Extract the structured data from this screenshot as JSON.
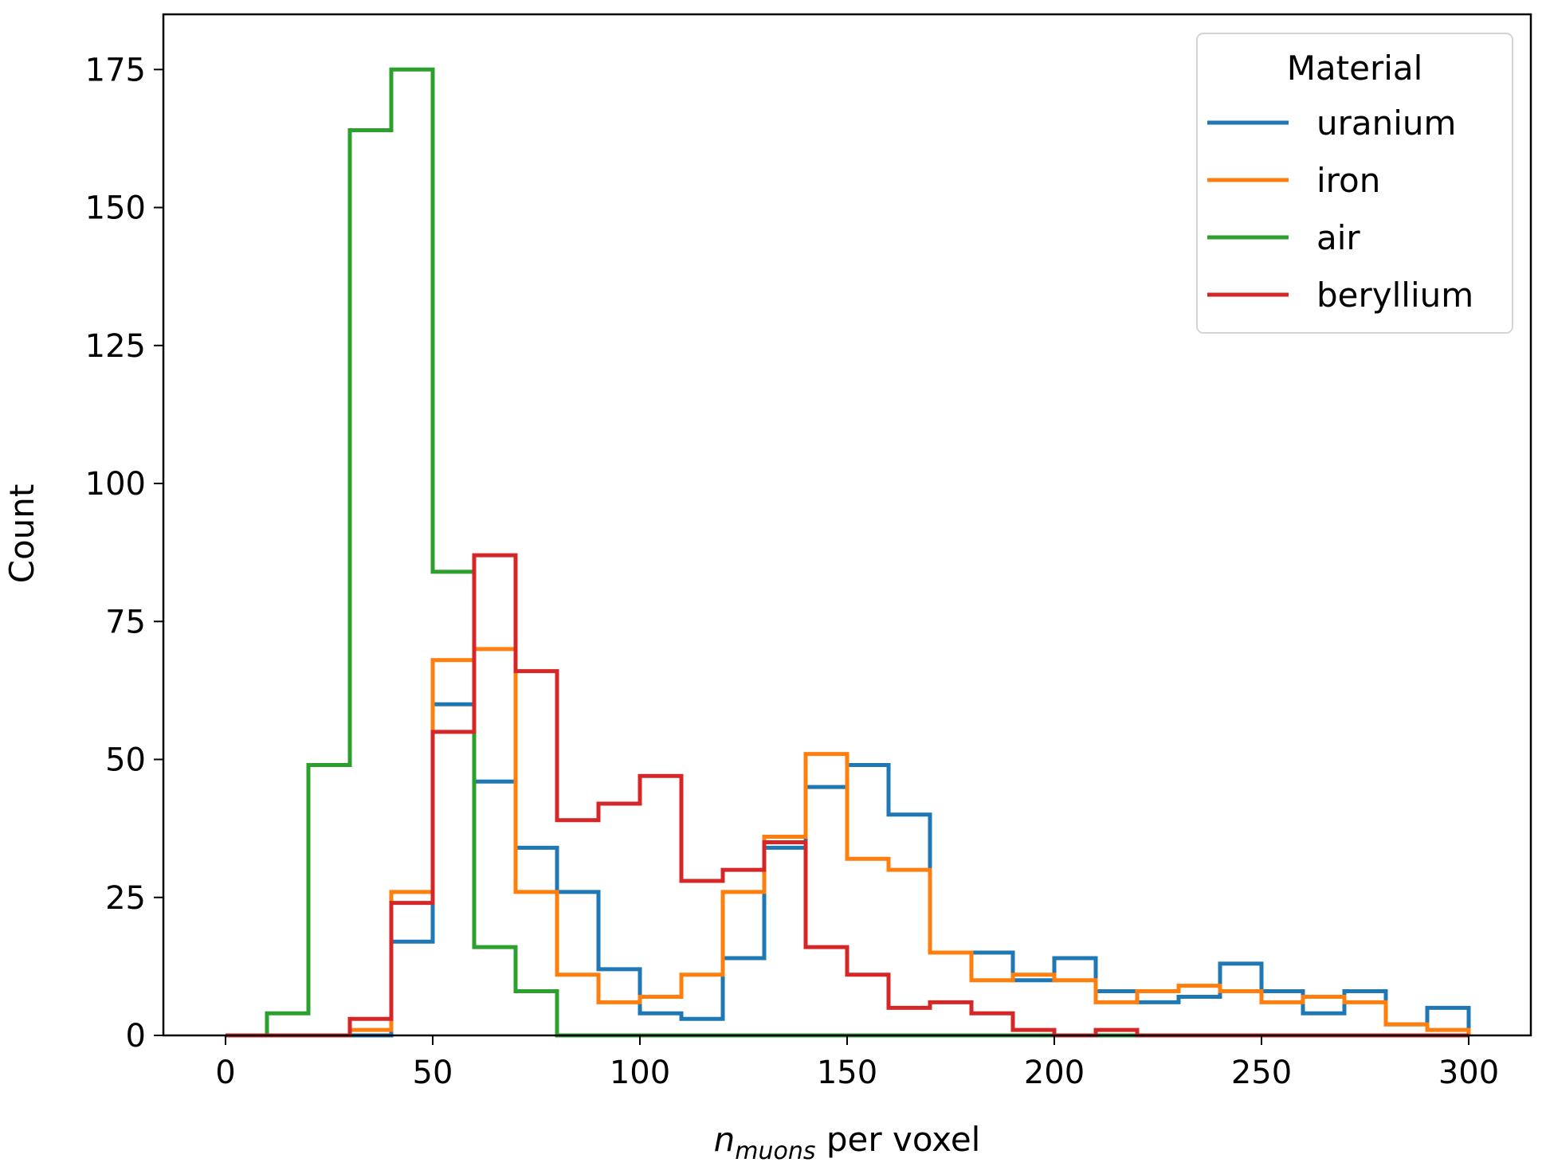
{
  "chart_data": {
    "type": "histogram",
    "title": "",
    "xlabel": {
      "italic_part": "n",
      "subscript": "muons",
      "suffix": " per voxel"
    },
    "ylabel": "Count",
    "xlim": [
      -15,
      315
    ],
    "ylim": [
      0,
      185
    ],
    "xticks": [
      0,
      50,
      100,
      150,
      200,
      250,
      300
    ],
    "yticks": [
      0,
      25,
      50,
      75,
      100,
      125,
      150,
      175
    ],
    "xtick_labels": [
      "0",
      "50",
      "100",
      "150",
      "200",
      "250",
      "300"
    ],
    "ytick_labels": [
      "0",
      "25",
      "50",
      "75",
      "100",
      "125",
      "150",
      "175"
    ],
    "bin_edges": [
      0,
      10,
      20,
      30,
      40,
      50,
      60,
      70,
      80,
      90,
      100,
      110,
      120,
      130,
      140,
      150,
      160,
      170,
      180,
      190,
      200,
      210,
      220,
      230,
      240,
      250,
      260,
      270,
      280,
      290,
      300
    ],
    "legend": {
      "title": "Material",
      "position": "top-right"
    },
    "series": [
      {
        "name": "uranium",
        "color": "#1f77b4",
        "values": [
          0,
          0,
          0,
          0,
          17,
          60,
          46,
          34,
          26,
          12,
          4,
          3,
          14,
          34,
          45,
          49,
          40,
          15,
          15,
          10,
          14,
          8,
          6,
          7,
          13,
          8,
          4,
          8,
          2,
          5
        ]
      },
      {
        "name": "iron",
        "color": "#ff7f0e",
        "values": [
          0,
          0,
          0,
          1,
          26,
          68,
          70,
          26,
          11,
          6,
          7,
          11,
          26,
          36,
          51,
          32,
          30,
          15,
          10,
          11,
          10,
          6,
          8,
          9,
          8,
          6,
          7,
          6,
          2,
          1
        ]
      },
      {
        "name": "air",
        "color": "#2ca02c",
        "values": [
          0,
          4,
          49,
          164,
          175,
          84,
          16,
          8,
          0,
          0,
          0,
          0,
          0,
          0,
          0,
          0,
          0,
          0,
          0,
          0,
          0,
          0,
          0,
          0,
          0,
          0,
          0,
          0,
          0,
          0
        ]
      },
      {
        "name": "beryllium",
        "color": "#d62728",
        "values": [
          0,
          0,
          0,
          3,
          24,
          55,
          87,
          66,
          39,
          42,
          47,
          28,
          30,
          35,
          16,
          11,
          5,
          6,
          4,
          1,
          0,
          1,
          0,
          0,
          0,
          0,
          0,
          0,
          0,
          0
        ]
      }
    ]
  }
}
